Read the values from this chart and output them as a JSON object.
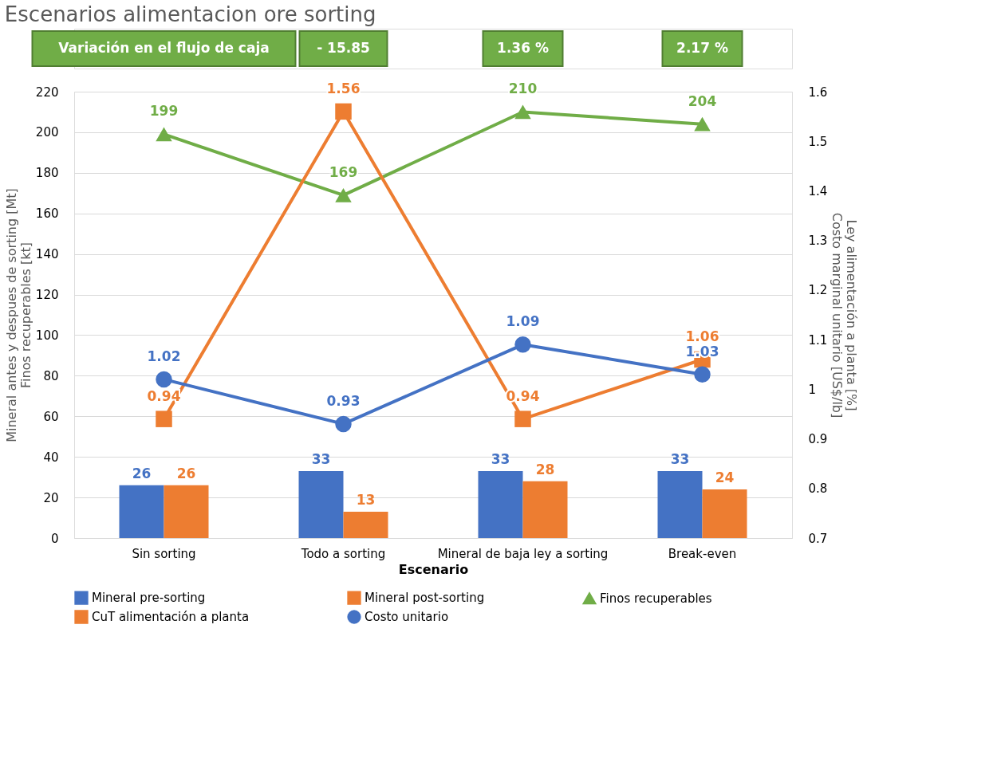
{
  "chart_data": {
    "type": "bar",
    "title": "Escenarios alimentacion ore sorting",
    "annotations": [
      "Variación en el flujo de caja",
      "- 15.85",
      "1.36 %",
      "2.17 %"
    ],
    "xlabel": "Escenario",
    "ylabel": "Mineral antes y despues de sorting [Mt]\nFinos recuperables [kt]",
    "y2label": "Ley alimentación a planta [%]\nCosto marginal unitario [US$/lb]",
    "categories": [
      "Sin sorting",
      "Todo a sorting",
      "Mineral de baja ley a sorting",
      "Break-even"
    ],
    "series": [
      {
        "name": "Mineral pre-sorting",
        "color": "#4472c4",
        "values": [
          26,
          33,
          33,
          33
        ]
      },
      {
        "name": "Mineral post-sorting",
        "color": "#ed7d31",
        "values": [
          26,
          13,
          28,
          24
        ]
      },
      {
        "name": "Finos recuperables",
        "type": "line",
        "marker": "triangle",
        "color": "#70ad47",
        "values": [
          199,
          169,
          210,
          204
        ]
      },
      {
        "name": "CuT alimentación a planta",
        "type": "line",
        "marker": "square",
        "axis": "y2",
        "color": "#ed7d31",
        "values": [
          0.94,
          1.56,
          0.94,
          1.06
        ]
      },
      {
        "name": "Costo unitario",
        "type": "line",
        "marker": "circle",
        "axis": "y2",
        "color": "#4472c4",
        "values": [
          1.02,
          0.93,
          1.09,
          1.03
        ]
      }
    ],
    "ylim": [
      0,
      220
    ],
    "yticks": [
      0,
      20,
      40,
      60,
      80,
      100,
      120,
      140,
      160,
      180,
      200,
      220
    ],
    "y2lim": [
      0.7,
      1.6
    ],
    "y2ticks": [
      0.7,
      0.8,
      0.9,
      1,
      1.1,
      1.2,
      1.3,
      1.4,
      1.5,
      1.6
    ],
    "grid": "y",
    "legend": "bottom",
    "data_labels": true
  }
}
